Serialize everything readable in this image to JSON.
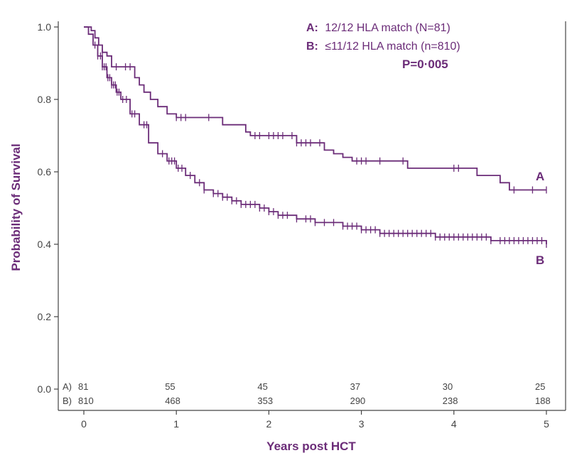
{
  "theme": {
    "curve_color": "#6b2c78",
    "axis_color": "#444444",
    "text_color": "#444444"
  },
  "chart_data": {
    "type": "line",
    "xlabel": "Years post HCT",
    "ylabel": "Probability of Survival",
    "xlim": [
      0,
      5
    ],
    "ylim": [
      0,
      1.0
    ],
    "x_ticks": [
      "0",
      "1",
      "2",
      "3",
      "4",
      "5"
    ],
    "y_ticks": [
      "0.0",
      "0.2",
      "0.4",
      "0.6",
      "0.8",
      "1.0"
    ],
    "grid": false,
    "legend_position": "top-right",
    "legend": [
      {
        "key": "A:",
        "text": "12/12 HLA match (N=81)"
      },
      {
        "key": "B:",
        "text": "≤11/12 HLA match (n=810)"
      }
    ],
    "p_value": "P=0·005",
    "series": [
      {
        "name": "A",
        "end_label": "A",
        "x": [
          0,
          0.08,
          0.12,
          0.16,
          0.2,
          0.25,
          0.3,
          0.5,
          0.55,
          0.6,
          0.65,
          0.72,
          0.8,
          0.9,
          1.0,
          1.45,
          1.5,
          1.75,
          1.8,
          2.3,
          2.4,
          2.6,
          2.7,
          2.75,
          2.8,
          2.9,
          3.05,
          3.3,
          3.5,
          4.0,
          4.25,
          4.5,
          4.6,
          5.0
        ],
        "y": [
          1.0,
          0.99,
          0.97,
          0.95,
          0.93,
          0.92,
          0.89,
          0.89,
          0.86,
          0.84,
          0.82,
          0.8,
          0.78,
          0.76,
          0.75,
          0.75,
          0.73,
          0.71,
          0.7,
          0.68,
          0.68,
          0.66,
          0.65,
          0.65,
          0.64,
          0.63,
          0.63,
          0.63,
          0.61,
          0.61,
          0.59,
          0.57,
          0.55,
          0.55
        ],
        "censor_x": [
          0.2,
          0.35,
          0.45,
          0.5,
          1.0,
          1.05,
          1.1,
          1.35,
          1.85,
          1.9,
          2.0,
          2.05,
          2.1,
          2.15,
          2.25,
          2.3,
          2.35,
          2.4,
          2.45,
          2.55,
          2.95,
          3.0,
          3.05,
          3.2,
          3.45,
          4.0,
          4.05,
          4.65,
          4.85,
          5.0
        ]
      },
      {
        "name": "B",
        "end_label": "B",
        "x": [
          0,
          0.05,
          0.1,
          0.15,
          0.2,
          0.25,
          0.3,
          0.35,
          0.4,
          0.5,
          0.6,
          0.7,
          0.8,
          0.9,
          1.0,
          1.1,
          1.2,
          1.3,
          1.4,
          1.5,
          1.6,
          1.7,
          1.8,
          1.9,
          2.0,
          2.1,
          2.2,
          2.3,
          2.4,
          2.5,
          2.6,
          2.7,
          2.8,
          2.9,
          3.0,
          3.2,
          3.4,
          3.6,
          3.8,
          4.0,
          4.2,
          4.4,
          4.6,
          4.8,
          5.0
        ],
        "y": [
          1.0,
          0.98,
          0.95,
          0.92,
          0.89,
          0.86,
          0.84,
          0.82,
          0.8,
          0.76,
          0.73,
          0.68,
          0.65,
          0.63,
          0.61,
          0.59,
          0.57,
          0.55,
          0.54,
          0.53,
          0.52,
          0.51,
          0.51,
          0.5,
          0.49,
          0.48,
          0.48,
          0.47,
          0.47,
          0.46,
          0.46,
          0.46,
          0.45,
          0.45,
          0.44,
          0.43,
          0.43,
          0.43,
          0.42,
          0.42,
          0.42,
          0.41,
          0.41,
          0.41,
          0.4
        ],
        "censor_x": [
          0.12,
          0.15,
          0.18,
          0.2,
          0.22,
          0.24,
          0.26,
          0.28,
          0.3,
          0.32,
          0.34,
          0.36,
          0.38,
          0.42,
          0.46,
          0.52,
          0.55,
          0.65,
          0.68,
          0.85,
          0.92,
          0.95,
          0.98,
          1.02,
          1.06,
          1.15,
          1.25,
          1.3,
          1.4,
          1.45,
          1.5,
          1.55,
          1.6,
          1.65,
          1.7,
          1.75,
          1.8,
          1.85,
          1.9,
          1.95,
          2.0,
          2.05,
          2.1,
          2.15,
          2.2,
          2.3,
          2.4,
          2.45,
          2.5,
          2.6,
          2.7,
          2.8,
          2.85,
          2.9,
          2.95,
          3.0,
          3.05,
          3.1,
          3.15,
          3.2,
          3.25,
          3.3,
          3.35,
          3.4,
          3.45,
          3.5,
          3.55,
          3.6,
          3.65,
          3.7,
          3.75,
          3.8,
          3.85,
          3.9,
          3.95,
          4.0,
          4.05,
          4.1,
          4.15,
          4.2,
          4.25,
          4.3,
          4.35,
          4.4,
          4.5,
          4.55,
          4.6,
          4.65,
          4.7,
          4.75,
          4.8,
          4.85,
          4.9,
          4.95,
          5.0
        ]
      }
    ],
    "at_risk": {
      "labels": [
        "A)",
        "B)"
      ],
      "times": [
        0,
        1,
        2,
        3,
        4,
        5
      ],
      "rows": [
        [
          "81",
          "55",
          "45",
          "37",
          "30",
          "25"
        ],
        [
          "810",
          "468",
          "353",
          "290",
          "238",
          "188"
        ]
      ]
    }
  }
}
